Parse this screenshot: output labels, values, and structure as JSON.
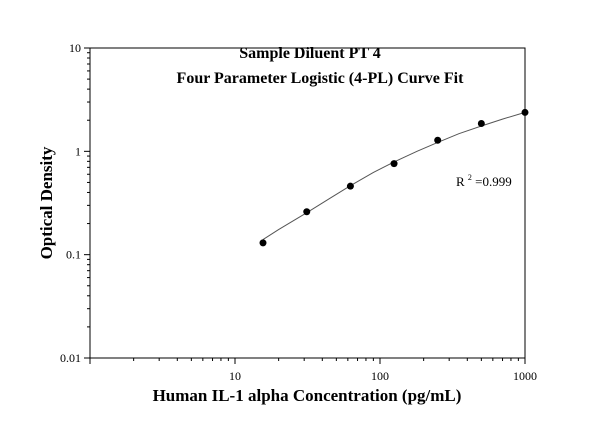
{
  "chart_data": {
    "type": "scatter",
    "title": "Sample Diluent PT 4",
    "subtitle": "Four Parameter Logistic (4-PL) Curve Fit",
    "xlabel": "Human IL-1 alpha Concentration (pg/mL)",
    "ylabel": "Optical Density",
    "xscale": "log",
    "yscale": "log",
    "xlim": [
      1,
      1000
    ],
    "ylim": [
      0.01,
      10
    ],
    "x_ticks": [
      10,
      100,
      1000
    ],
    "x_tick_labels": [
      "10",
      "100",
      "1000"
    ],
    "y_ticks": [
      0.01,
      0.1,
      1,
      10
    ],
    "y_tick_labels": [
      "0.01",
      "0.1",
      "1",
      "10"
    ],
    "grid": false,
    "legend": "none",
    "series": [
      {
        "x": [
          15.6,
          31.25,
          62.5,
          125,
          250,
          500,
          1000
        ],
        "y": [
          0.13,
          0.26,
          0.46,
          0.76,
          1.28,
          1.86,
          2.38
        ]
      }
    ],
    "fit_curve": {
      "x": [
        15.6,
        20,
        31.25,
        45,
        62.5,
        90,
        125,
        180,
        250,
        350,
        500,
        700,
        1000
      ],
      "y": [
        0.14,
        0.175,
        0.255,
        0.35,
        0.465,
        0.625,
        0.79,
        1.0,
        1.22,
        1.48,
        1.76,
        2.05,
        2.38
      ]
    },
    "annotation": {
      "base": "R",
      "sup": "2",
      "value": "=0.999"
    },
    "colors": {
      "marker": "#000000",
      "line": "#555555",
      "axis": "#000000"
    }
  }
}
